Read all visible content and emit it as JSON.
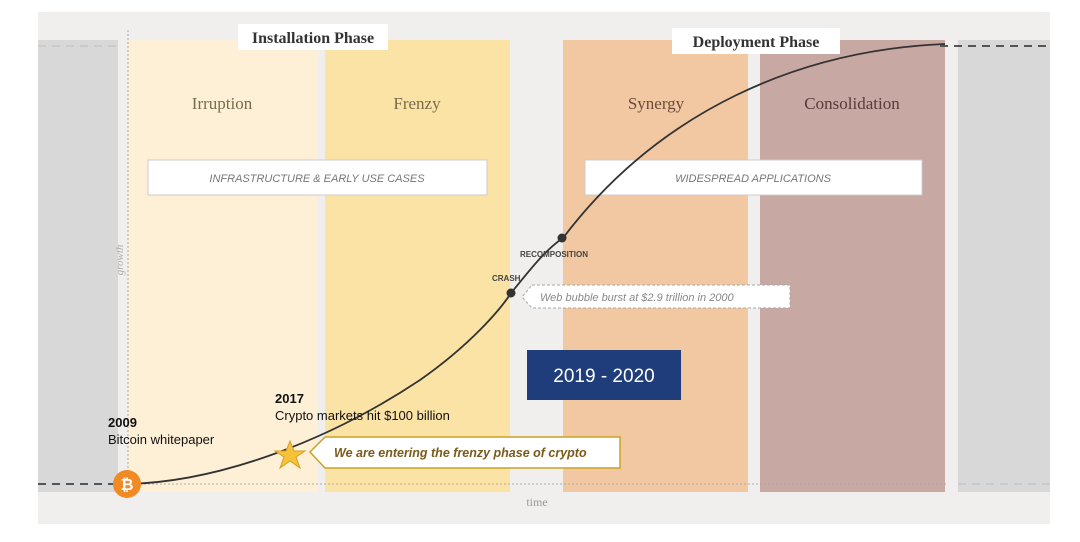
{
  "phases": {
    "installation": "Installation Phase",
    "deployment": "Deployment Phase"
  },
  "stages": [
    "Irruption",
    "Frenzy",
    "Synergy",
    "Consolidation"
  ],
  "boxes": {
    "left": "INFRASTRUCTURE & EARLY USE CASES",
    "right": "WIDESPREAD APPLICATIONS"
  },
  "axes": {
    "y": "growth",
    "x": "time"
  },
  "points": {
    "recomposition": "RECOMPOSITION",
    "crash": "CRASH",
    "crash_note": "Web bubble burst at $2.9 trillion in 2000"
  },
  "highlight": "2019 - 2020",
  "events": [
    {
      "year": "2017",
      "text": "Crypto markets hit $100 billion"
    },
    {
      "year": "2009",
      "text": "Bitcoin whitepaper"
    }
  ],
  "callout": "We are entering the frenzy phase of crypto",
  "bitcoin_icon": "₿"
}
